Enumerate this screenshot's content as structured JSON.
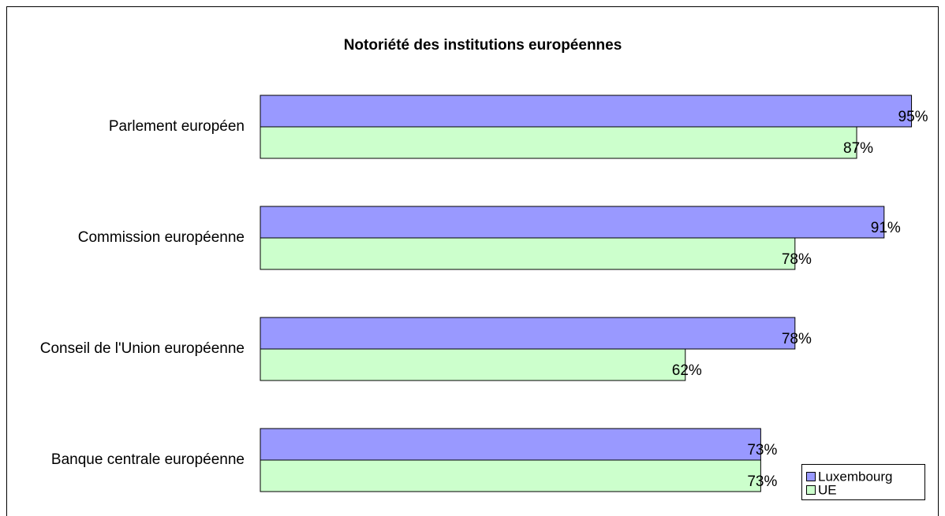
{
  "chart_data": {
    "type": "bar",
    "orientation": "horizontal",
    "title": "Notoriété des institutions européennes",
    "categories": [
      "Parlement européen",
      "Commission européenne",
      "Conseil de l'Union européenne",
      "Banque centrale européenne"
    ],
    "series": [
      {
        "name": "Luxembourg",
        "color": "#9999ff",
        "values": [
          95,
          91,
          78,
          73
        ],
        "value_labels": [
          "95%",
          "91%",
          "78%",
          "73%"
        ]
      },
      {
        "name": "UE",
        "color": "#ccffcc",
        "values": [
          87,
          78,
          62,
          73
        ],
        "value_labels": [
          "87%",
          "78%",
          "62%",
          "73%"
        ]
      }
    ],
    "xlim": [
      0,
      100
    ],
    "legend": "bottom-right"
  }
}
